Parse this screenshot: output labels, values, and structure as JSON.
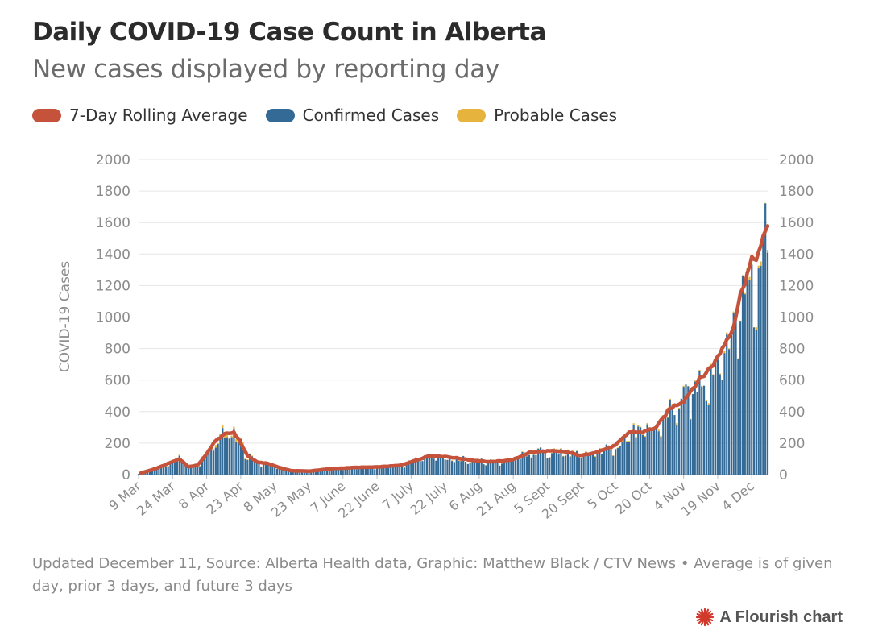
{
  "header": {
    "title": "Daily COVID-19 Case Count in Alberta",
    "subtitle": "New cases displayed by reporting day"
  },
  "legend": [
    {
      "label": "7-Day Rolling Average",
      "color": "#c5533b"
    },
    {
      "label": "Confirmed Cases",
      "color": "#336a96"
    },
    {
      "label": "Probable Cases",
      "color": "#e6b33c"
    }
  ],
  "footer": {
    "note": "Updated December 11, Source: Alberta Health data, Graphic: Matthew Black / CTV News • Average is of given day, prior 3 days, and future 3 days",
    "brand": "A Flourish chart"
  },
  "chart_data": {
    "type": "bar",
    "title": "Daily COVID-19 Case Count in Alberta",
    "subtitle": "New cases displayed by reporting day",
    "ylabel": "COVID-19 Cases",
    "xlabel": "",
    "ylim": [
      0,
      2000
    ],
    "yticks": [
      0,
      200,
      400,
      600,
      800,
      1000,
      1200,
      1400,
      1600,
      1800,
      2000
    ],
    "xticks": [
      "9 Mar",
      "24 Mar",
      "8 Apr",
      "23 Apr",
      "8 May",
      "23 May",
      "7 June",
      "22 June",
      "7 July",
      "22 July",
      "6 Aug",
      "21 Aug",
      "5 Sept",
      "20 Sept",
      "5 Oct",
      "20 Oct",
      "4 Nov",
      "19 Nov",
      "4 Dec"
    ],
    "x_start": "9 Mar",
    "x_end": "10 Dec",
    "grid": true,
    "legend_position": "top-left",
    "stacked": true,
    "series_names": [
      "Confirmed Cases",
      "Probable Cases",
      "7-Day Rolling Average"
    ],
    "anchors": [
      [
        0,
        5
      ],
      [
        8,
        40
      ],
      [
        13,
        70
      ],
      [
        18,
        100
      ],
      [
        22,
        50
      ],
      [
        26,
        60
      ],
      [
        30,
        130
      ],
      [
        33,
        200
      ],
      [
        37,
        250
      ],
      [
        42,
        270
      ],
      [
        45,
        200
      ],
      [
        48,
        120
      ],
      [
        52,
        80
      ],
      [
        57,
        70
      ],
      [
        62,
        45
      ],
      [
        67,
        25
      ],
      [
        75,
        22
      ],
      [
        85,
        38
      ],
      [
        95,
        45
      ],
      [
        105,
        48
      ],
      [
        115,
        58
      ],
      [
        122,
        90
      ],
      [
        128,
        120
      ],
      [
        135,
        115
      ],
      [
        145,
        95
      ],
      [
        155,
        80
      ],
      [
        165,
        95
      ],
      [
        172,
        140
      ],
      [
        180,
        150
      ],
      [
        188,
        145
      ],
      [
        195,
        120
      ],
      [
        203,
        150
      ],
      [
        210,
        185
      ],
      [
        216,
        270
      ],
      [
        222,
        270
      ],
      [
        228,
        300
      ],
      [
        234,
        420
      ],
      [
        240,
        470
      ],
      [
        245,
        570
      ],
      [
        250,
        650
      ],
      [
        254,
        720
      ],
      [
        258,
        830
      ],
      [
        262,
        950
      ],
      [
        266,
        1200
      ],
      [
        270,
        1350
      ],
      [
        274,
        1430
      ],
      [
        278,
        1650
      ],
      [
        282,
        1760
      ],
      [
        285,
        1780
      ],
      [
        288,
        1680
      ]
    ]
  }
}
